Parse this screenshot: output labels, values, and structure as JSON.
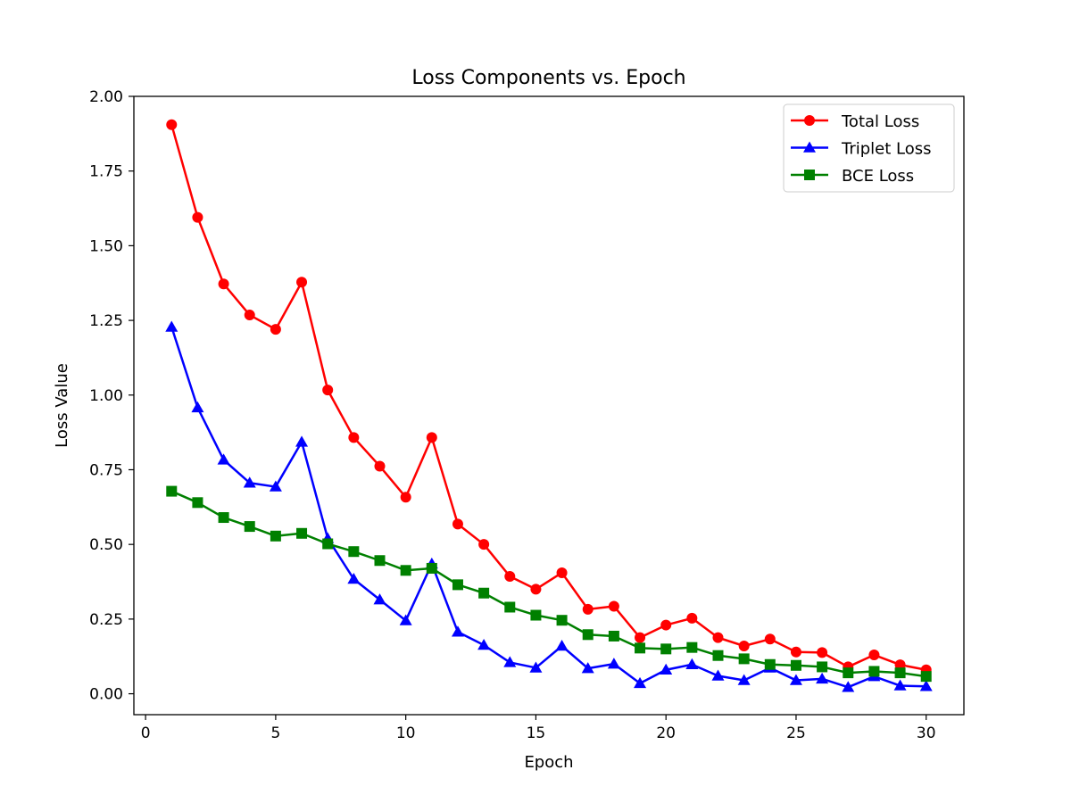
{
  "chart_data": {
    "type": "line",
    "title": "Loss Components vs. Epoch",
    "xlabel": "Epoch",
    "ylabel": "Loss Value",
    "xlim": [
      -0.45,
      31.45
    ],
    "ylim": [
      -0.07,
      2.0
    ],
    "xticks": [
      0,
      5,
      10,
      15,
      20,
      25,
      30
    ],
    "yticks": [
      0.0,
      0.25,
      0.5,
      0.75,
      1.0,
      1.25,
      1.5,
      1.75,
      2.0
    ],
    "ytick_labels": [
      "0.00",
      "0.25",
      "0.50",
      "0.75",
      "1.00",
      "1.25",
      "1.50",
      "1.75",
      "2.00"
    ],
    "grid": false,
    "legend_position": "top-right",
    "x": [
      1,
      2,
      3,
      4,
      5,
      6,
      7,
      8,
      9,
      10,
      11,
      12,
      13,
      14,
      15,
      16,
      17,
      18,
      19,
      20,
      21,
      22,
      23,
      24,
      25,
      26,
      27,
      28,
      29,
      30
    ],
    "series": [
      {
        "name": "Total Loss",
        "color": "#ff0000",
        "marker": "circle",
        "values": [
          1.905,
          1.595,
          1.372,
          1.268,
          1.22,
          1.378,
          1.017,
          0.858,
          0.762,
          0.658,
          0.858,
          0.568,
          0.5,
          0.393,
          0.35,
          0.405,
          0.283,
          0.293,
          0.188,
          0.23,
          0.253,
          0.188,
          0.16,
          0.183,
          0.14,
          0.138,
          0.09,
          0.13,
          0.097,
          0.08
        ]
      },
      {
        "name": "Triplet Loss",
        "color": "#0000ff",
        "marker": "triangle",
        "values": [
          1.228,
          0.958,
          0.783,
          0.706,
          0.693,
          0.843,
          0.52,
          0.384,
          0.315,
          0.245,
          0.435,
          0.207,
          0.163,
          0.105,
          0.087,
          0.16,
          0.085,
          0.1,
          0.035,
          0.08,
          0.098,
          0.06,
          0.045,
          0.087,
          0.045,
          0.05,
          0.022,
          0.058,
          0.027,
          0.025
        ]
      },
      {
        "name": "BCE Loss",
        "color": "#008000",
        "marker": "square",
        "values": [
          0.678,
          0.64,
          0.59,
          0.56,
          0.528,
          0.537,
          0.502,
          0.476,
          0.446,
          0.413,
          0.42,
          0.365,
          0.337,
          0.29,
          0.263,
          0.246,
          0.198,
          0.193,
          0.153,
          0.15,
          0.155,
          0.128,
          0.117,
          0.098,
          0.095,
          0.09,
          0.07,
          0.075,
          0.07,
          0.058
        ]
      }
    ]
  }
}
